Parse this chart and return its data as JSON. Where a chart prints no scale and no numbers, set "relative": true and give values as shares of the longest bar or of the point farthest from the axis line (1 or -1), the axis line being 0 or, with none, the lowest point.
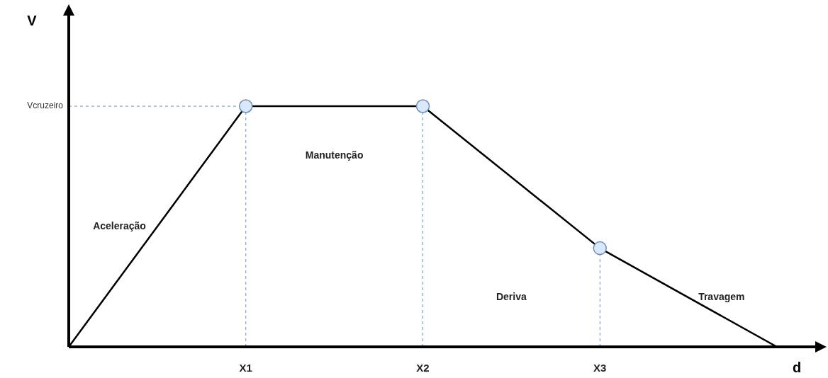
{
  "chart_data": {
    "type": "line",
    "relative": true,
    "xlabel": "d",
    "categories": [
      null,
      "X1",
      "X2",
      "X3",
      null
    ],
    "series": [
      {
        "color": "#000000",
        "values": [
          0,
          1,
          1,
          0.41,
          0
        ]
      }
    ],
    "marker": "circle",
    "grid": false,
    "legend": false,
    "ref_lines": [
      {
        "axis": "y",
        "value": 1,
        "label": "Vcruzeiro",
        "color": "#6c8ebf",
        "line_style": "dashed"
      },
      {
        "axis": "x",
        "value": "X1",
        "color": "#6c8ebf",
        "line_style": "dashed"
      },
      {
        "axis": "x",
        "value": "X2",
        "color": "#6c8ebf",
        "line_style": "dashed"
      },
      {
        "axis": "x",
        "value": "X3",
        "color": "#6c8ebf",
        "line_style": "dashed"
      }
    ],
    "annotations": [
      "V",
      "Aceleração",
      "Manutenção",
      "Deriva",
      "Travagem"
    ]
  }
}
